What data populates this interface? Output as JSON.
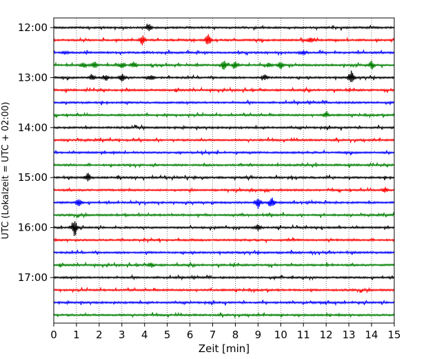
{
  "chart_data": {
    "type": "line",
    "title": "",
    "xlabel": "Zeit  [min]",
    "ylabel": "UTC (Lokalzeit = UTC + 02:00)",
    "xlim": [
      0,
      15
    ],
    "xticks": [
      0,
      1,
      2,
      3,
      4,
      5,
      6,
      7,
      8,
      9,
      10,
      11,
      12,
      13,
      14,
      15
    ],
    "ytick_labels": [
      "12:00",
      "13:00",
      "14:00",
      "15:00",
      "16:00",
      "17:00"
    ],
    "ytick_rows": [
      0,
      4,
      8,
      12,
      16,
      20
    ],
    "grid": "vertical dotted at each minute",
    "trace_colors": [
      "#000000",
      "#ff0000",
      "#0000ff",
      "#008000"
    ],
    "series": [
      {
        "time": "12:00",
        "events": [
          [
            4.2,
            4.5
          ]
        ]
      },
      {
        "time": "12:15",
        "events": [
          [
            3.9,
            6.5
          ],
          [
            6.8,
            9.0
          ],
          [
            11.3,
            4.0
          ]
        ]
      },
      {
        "time": "12:30",
        "events": [
          [
            0.5,
            1.5
          ],
          [
            11.0,
            2.5
          ]
        ]
      },
      {
        "time": "12:45",
        "events": [
          [
            1.3,
            4.0
          ],
          [
            1.8,
            4.0
          ],
          [
            3.0,
            4.5
          ],
          [
            3.5,
            4.0
          ],
          [
            7.5,
            6.0
          ],
          [
            8.0,
            4.5
          ],
          [
            9.5,
            4.0
          ],
          [
            10.0,
            5.0
          ],
          [
            14.0,
            5.5
          ]
        ]
      },
      {
        "time": "13:00",
        "events": [
          [
            1.7,
            5.0
          ],
          [
            2.3,
            4.0
          ],
          [
            3.0,
            5.5
          ],
          [
            4.3,
            5.0
          ],
          [
            9.3,
            3.5
          ],
          [
            13.1,
            10.0
          ]
        ]
      },
      {
        "time": "13:15",
        "events": []
      },
      {
        "time": "13:30",
        "events": []
      },
      {
        "time": "13:45",
        "events": [
          [
            12.0,
            3.5
          ]
        ]
      },
      {
        "time": "14:00",
        "events": []
      },
      {
        "time": "14:15",
        "events": []
      },
      {
        "time": "14:30",
        "events": []
      },
      {
        "time": "14:45",
        "events": []
      },
      {
        "time": "15:00",
        "events": [
          [
            1.5,
            6.0
          ]
        ]
      },
      {
        "time": "15:15",
        "events": [
          [
            14.6,
            3.5
          ]
        ]
      },
      {
        "time": "15:30",
        "events": [
          [
            1.1,
            5.5
          ],
          [
            9.0,
            9.0
          ],
          [
            9.6,
            8.5
          ]
        ]
      },
      {
        "time": "15:45",
        "events": []
      },
      {
        "time": "16:00",
        "events": [
          [
            0.9,
            12.0
          ],
          [
            9.0,
            4.0
          ]
        ]
      },
      {
        "time": "16:15",
        "events": []
      },
      {
        "time": "16:30",
        "events": []
      },
      {
        "time": "16:45",
        "events": [
          [
            4.3,
            3.0
          ]
        ]
      },
      {
        "time": "17:00",
        "events": []
      },
      {
        "time": "17:15",
        "events": []
      },
      {
        "time": "17:30",
        "events": []
      },
      {
        "time": "17:45",
        "events": []
      }
    ]
  }
}
